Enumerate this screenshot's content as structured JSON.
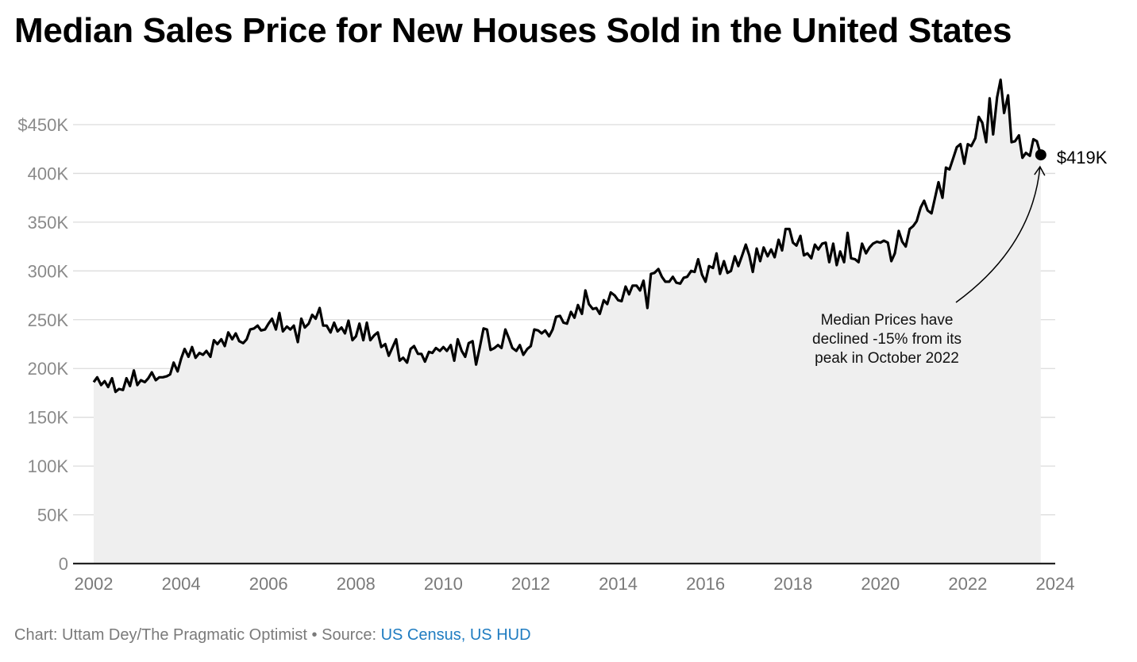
{
  "header": {
    "title": "Median Sales Price for New Houses Sold in the United States"
  },
  "footer": {
    "credit": "Chart: Uttam Dey/The Pragmatic Optimist • Source: ",
    "source": "US Census, US HUD"
  },
  "colors": {
    "line": "#000000",
    "area": "#efefef",
    "grid": "#dcdcdc",
    "source_link": "#1f7cc1"
  },
  "chart_data": {
    "type": "area",
    "title": "Median Sales Price for New Houses Sold in the United States",
    "xlabel": "",
    "ylabel": "",
    "xlim": [
      2002,
      2024
    ],
    "ylim": [
      0,
      480000
    ],
    "grid": true,
    "x_ticks": [
      {
        "value": 2002,
        "label": "2002"
      },
      {
        "value": 2004,
        "label": "2004"
      },
      {
        "value": 2006,
        "label": "2006"
      },
      {
        "value": 2008,
        "label": "2008"
      },
      {
        "value": 2010,
        "label": "2010"
      },
      {
        "value": 2012,
        "label": "2012"
      },
      {
        "value": 2014,
        "label": "2014"
      },
      {
        "value": 2016,
        "label": "2016"
      },
      {
        "value": 2018,
        "label": "2018"
      },
      {
        "value": 2020,
        "label": "2020"
      },
      {
        "value": 2022,
        "label": "2022"
      },
      {
        "value": 2024,
        "label": "2024"
      }
    ],
    "y_ticks": [
      {
        "value": 0,
        "label": "0"
      },
      {
        "value": 50000,
        "label": "50K"
      },
      {
        "value": 100000,
        "label": "100K"
      },
      {
        "value": 150000,
        "label": "150K"
      },
      {
        "value": 200000,
        "label": "200K"
      },
      {
        "value": 250000,
        "label": "250K"
      },
      {
        "value": 300000,
        "label": "300K"
      },
      {
        "value": 350000,
        "label": "350K"
      },
      {
        "value": 400000,
        "label": "400K"
      },
      {
        "value": 450000,
        "label": "$450K"
      }
    ],
    "series": [
      {
        "x": [
          2002.0,
          2002.08,
          2002.17,
          2002.25,
          2002.33,
          2002.42,
          2002.5,
          2002.58,
          2002.67,
          2002.75,
          2002.83,
          2002.92,
          2003.0,
          2003.08,
          2003.17,
          2003.25,
          2003.33,
          2003.42,
          2003.5,
          2003.58,
          2003.67,
          2003.75,
          2003.83,
          2003.92,
          2004.0,
          2004.08,
          2004.17,
          2004.25,
          2004.33,
          2004.42,
          2004.5,
          2004.58,
          2004.67,
          2004.75,
          2004.83,
          2004.92,
          2005.0,
          2005.08,
          2005.17,
          2005.25,
          2005.33,
          2005.42,
          2005.5,
          2005.58,
          2005.67,
          2005.75,
          2005.83,
          2005.92,
          2006.0,
          2006.08,
          2006.17,
          2006.25,
          2006.33,
          2006.42,
          2006.5,
          2006.58,
          2006.67,
          2006.75,
          2006.83,
          2006.92,
          2007.0,
          2007.08,
          2007.17,
          2007.25,
          2007.33,
          2007.42,
          2007.5,
          2007.58,
          2007.67,
          2007.75,
          2007.83,
          2007.92,
          2008.0,
          2008.08,
          2008.17,
          2008.25,
          2008.33,
          2008.42,
          2008.5,
          2008.58,
          2008.67,
          2008.75,
          2008.83,
          2008.92,
          2009.0,
          2009.08,
          2009.17,
          2009.25,
          2009.33,
          2009.42,
          2009.5,
          2009.58,
          2009.67,
          2009.75,
          2009.83,
          2009.92,
          2010.0,
          2010.08,
          2010.17,
          2010.25,
          2010.33,
          2010.42,
          2010.5,
          2010.58,
          2010.67,
          2010.75,
          2010.83,
          2010.92,
          2011.0,
          2011.08,
          2011.17,
          2011.25,
          2011.33,
          2011.42,
          2011.5,
          2011.58,
          2011.67,
          2011.75,
          2011.83,
          2011.92,
          2012.0,
          2012.08,
          2012.17,
          2012.25,
          2012.33,
          2012.42,
          2012.5,
          2012.58,
          2012.67,
          2012.75,
          2012.83,
          2012.92,
          2013.0,
          2013.08,
          2013.17,
          2013.25,
          2013.33,
          2013.42,
          2013.5,
          2013.58,
          2013.67,
          2013.75,
          2013.83,
          2013.92,
          2014.0,
          2014.08,
          2014.17,
          2014.25,
          2014.33,
          2014.42,
          2014.5,
          2014.58,
          2014.67,
          2014.75,
          2014.83,
          2014.92,
          2015.0,
          2015.08,
          2015.17,
          2015.25,
          2015.33,
          2015.42,
          2015.5,
          2015.58,
          2015.67,
          2015.75,
          2015.83,
          2015.92,
          2016.0,
          2016.08,
          2016.17,
          2016.25,
          2016.33,
          2016.42,
          2016.5,
          2016.58,
          2016.67,
          2016.75,
          2016.83,
          2016.92,
          2017.0,
          2017.08,
          2017.17,
          2017.25,
          2017.33,
          2017.42,
          2017.5,
          2017.58,
          2017.67,
          2017.75,
          2017.83,
          2017.92,
          2018.0,
          2018.08,
          2018.17,
          2018.25,
          2018.33,
          2018.42,
          2018.5,
          2018.58,
          2018.67,
          2018.75,
          2018.83,
          2018.92,
          2019.0,
          2019.08,
          2019.17,
          2019.25,
          2019.33,
          2019.42,
          2019.5,
          2019.58,
          2019.67,
          2019.75,
          2019.83,
          2019.92,
          2020.0,
          2020.08,
          2020.17,
          2020.25,
          2020.33,
          2020.42,
          2020.5,
          2020.58,
          2020.67,
          2020.75,
          2020.83,
          2020.92,
          2021.0,
          2021.08,
          2021.17,
          2021.25,
          2021.33,
          2021.42,
          2021.5,
          2021.58,
          2021.67,
          2021.75,
          2021.83,
          2021.92,
          2022.0,
          2022.08,
          2022.17,
          2022.25,
          2022.33,
          2022.42,
          2022.5,
          2022.58,
          2022.67,
          2022.75,
          2022.83,
          2022.92,
          2023.0,
          2023.08,
          2023.17,
          2023.25,
          2023.33,
          2023.42,
          2023.5,
          2023.58,
          2023.67
        ],
        "values": [
          186000,
          191000,
          183000,
          187000,
          181000,
          190000,
          176000,
          179000,
          178000,
          190000,
          182000,
          198000,
          183000,
          188000,
          186000,
          190000,
          196000,
          188000,
          191000,
          191000,
          192000,
          194000,
          206000,
          197000,
          210000,
          220000,
          212000,
          222000,
          211000,
          216000,
          214000,
          218000,
          212000,
          229000,
          225000,
          230000,
          223000,
          237000,
          230000,
          236000,
          228000,
          226000,
          230000,
          240000,
          241000,
          244000,
          239000,
          240000,
          246000,
          251000,
          240000,
          257000,
          238000,
          243000,
          240000,
          244000,
          227000,
          251000,
          242000,
          246000,
          255000,
          251000,
          262000,
          244000,
          244000,
          237000,
          247000,
          238000,
          242000,
          236000,
          249000,
          229000,
          233000,
          246000,
          229000,
          247000,
          229000,
          234000,
          237000,
          222000,
          225000,
          213000,
          221000,
          230000,
          208000,
          211000,
          206000,
          220000,
          223000,
          215000,
          215000,
          207000,
          217000,
          216000,
          221000,
          218000,
          222000,
          218000,
          224000,
          208000,
          230000,
          218000,
          212000,
          226000,
          228000,
          204000,
          221000,
          241000,
          240000,
          219000,
          221000,
          224000,
          221000,
          240000,
          231000,
          221000,
          218000,
          224000,
          214000,
          220000,
          223000,
          240000,
          239000,
          236000,
          239000,
          233000,
          240000,
          253000,
          254000,
          247000,
          246000,
          258000,
          252000,
          265000,
          256000,
          280000,
          266000,
          261000,
          262000,
          256000,
          270000,
          266000,
          278000,
          275000,
          270000,
          269000,
          284000,
          276000,
          285000,
          285000,
          280000,
          290000,
          262000,
          297000,
          298000,
          302000,
          294000,
          289000,
          289000,
          294000,
          288000,
          287000,
          293000,
          294000,
          300000,
          299000,
          312000,
          296000,
          289000,
          305000,
          303000,
          318000,
          297000,
          310000,
          298000,
          300000,
          315000,
          305000,
          315000,
          327000,
          316000,
          299000,
          323000,
          310000,
          324000,
          315000,
          322000,
          314000,
          332000,
          321000,
          343000,
          343000,
          329000,
          326000,
          336000,
          316000,
          318000,
          313000,
          327000,
          322000,
          328000,
          329000,
          309000,
          328000,
          306000,
          320000,
          309000,
          339000,
          313000,
          312000,
          309000,
          328000,
          318000,
          324000,
          328000,
          330000,
          329000,
          331000,
          329000,
          310000,
          318000,
          341000,
          330000,
          325000,
          343000,
          346000,
          351000,
          365000,
          372000,
          362000,
          359000,
          375000,
          391000,
          375000,
          406000,
          404000,
          416000,
          427000,
          430000,
          410000,
          430000,
          428000,
          436000,
          458000,
          452000,
          432000,
          477000,
          440000,
          478000,
          496000,
          462000,
          480000,
          432000,
          433000,
          439000,
          416000,
          421000,
          418000,
          435000,
          433000,
          419000
        ]
      }
    ],
    "annotations": [
      {
        "lines": [
          "Median Prices have",
          "declined -15% from its",
          "peak in October 2022"
        ]
      },
      {
        "end_label": "$419K"
      }
    ]
  }
}
